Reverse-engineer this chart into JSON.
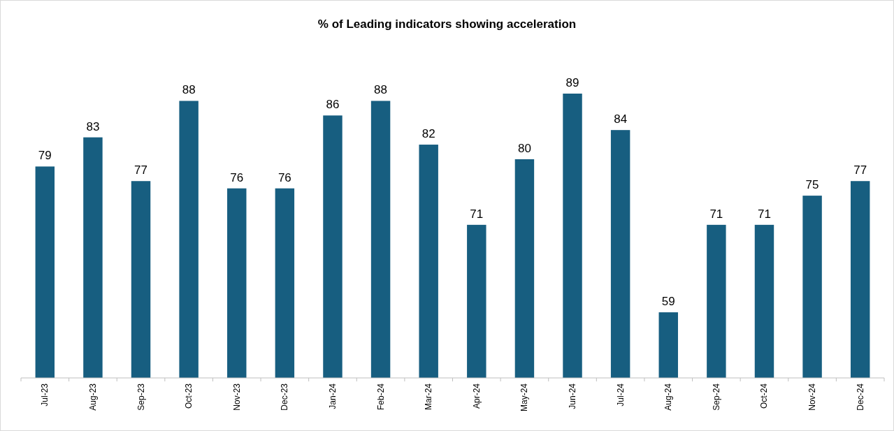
{
  "chart_data": {
    "type": "bar",
    "title": "% of Leading indicators showing acceleration",
    "categories": [
      "Jul-23",
      "Aug-23",
      "Sep-23",
      "Oct-23",
      "Nov-23",
      "Dec-23",
      "Jan-24",
      "Feb-24",
      "Mar-24",
      "Apr-24",
      "May-24",
      "Jun-24",
      "Jul-24",
      "Aug-24",
      "Sep-24",
      "Oct-24",
      "Nov-24",
      "Dec-24"
    ],
    "values": [
      79,
      83,
      77,
      88,
      76,
      76,
      86,
      88,
      82,
      71,
      80,
      89,
      84,
      59,
      71,
      71,
      75,
      77
    ],
    "color": "#175e80",
    "ylim": [
      50,
      89
    ],
    "tick_labels": "x",
    "data_labels": true
  }
}
